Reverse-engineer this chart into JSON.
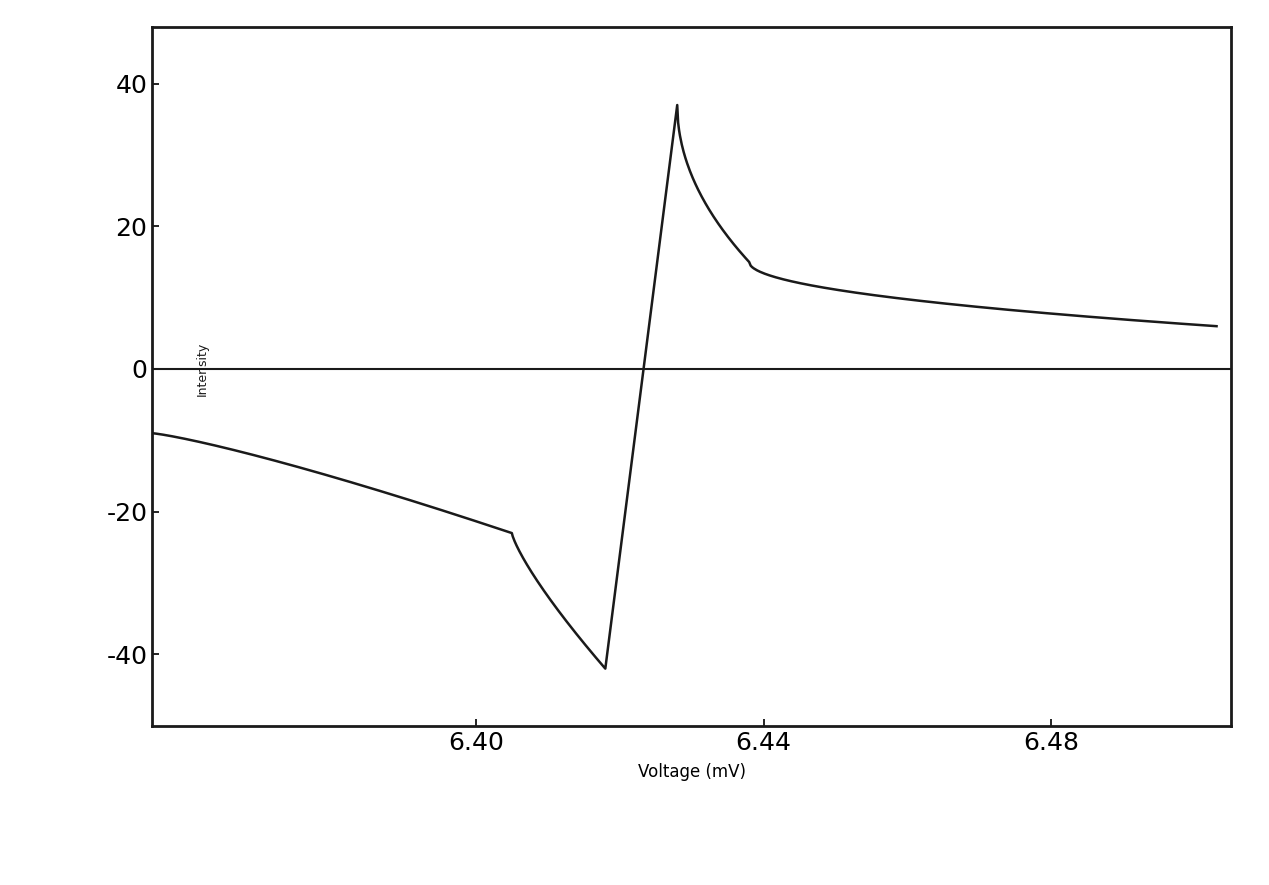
{
  "xlabel": "Voltage (mV)",
  "ylabel": "Intensity",
  "xlim": [
    6.355,
    6.505
  ],
  "ylim": [
    -50,
    48
  ],
  "xticks": [
    6.4,
    6.44,
    6.48
  ],
  "yticks": [
    -40,
    -20,
    0,
    20,
    40
  ],
  "line_color": "#1a1a1a",
  "line_width": 1.8,
  "background_color": "#ffffff",
  "xlabel_fontsize": 12,
  "ylabel_fontsize": 11,
  "tick_fontsize": 18,
  "spine_linewidth": 2.0
}
